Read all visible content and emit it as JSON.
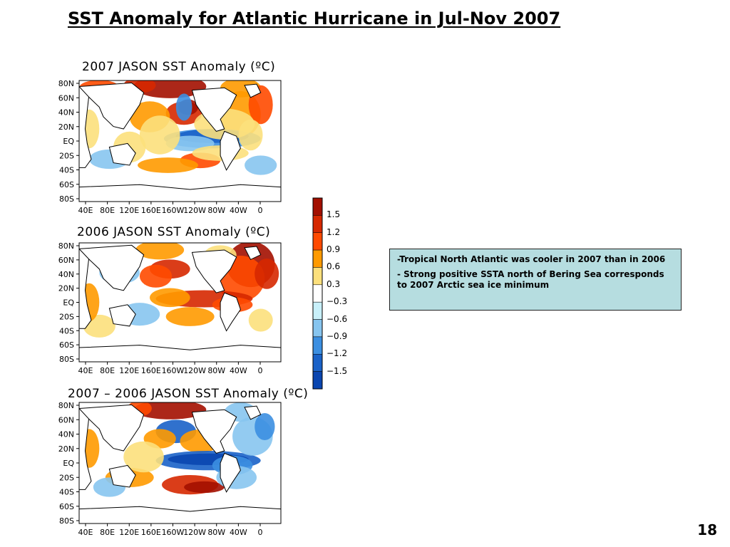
{
  "slide": {
    "title": "SST Anomaly for Atlantic Hurricane in Jul-Nov 2007",
    "page_number": "18"
  },
  "maps": [
    {
      "title": "2007 JASON SST Anomaly (ºC)"
    },
    {
      "title": "2006 JASON  SST Anomaly (ºC)"
    },
    {
      "title": "2007 – 2006 JASON SST Anomaly  (ºC)"
    }
  ],
  "axes": {
    "lat_labels": [
      "80N",
      "60N",
      "40N",
      "20N",
      "EQ",
      "20S",
      "40S",
      "60S",
      "80S"
    ],
    "lon_labels": [
      "40E",
      "80E",
      "120E",
      "160E",
      "160W",
      "120W",
      "80W",
      "40W",
      "0"
    ]
  },
  "colorbar": {
    "labels": [
      "1.5",
      "1.2",
      "0.9",
      "0.6",
      "0.3",
      "−0.3",
      "−0.6",
      "−0.9",
      "−1.2",
      "−1.5"
    ],
    "colors": [
      "#a30f00",
      "#d62800",
      "#ff4a00",
      "#ff9a00",
      "#fce07c",
      "#ffffff",
      "#c8f0fa",
      "#87c5ef",
      "#3c8fe1",
      "#1a62c8",
      "#0a46b0"
    ]
  },
  "notes": [
    "-Tropical North Atlantic was cooler in 2007 than in 2006",
    "- Strong positive SSTA north of Bering Sea corresponds to 2007 Arctic sea ice minimum"
  ]
}
